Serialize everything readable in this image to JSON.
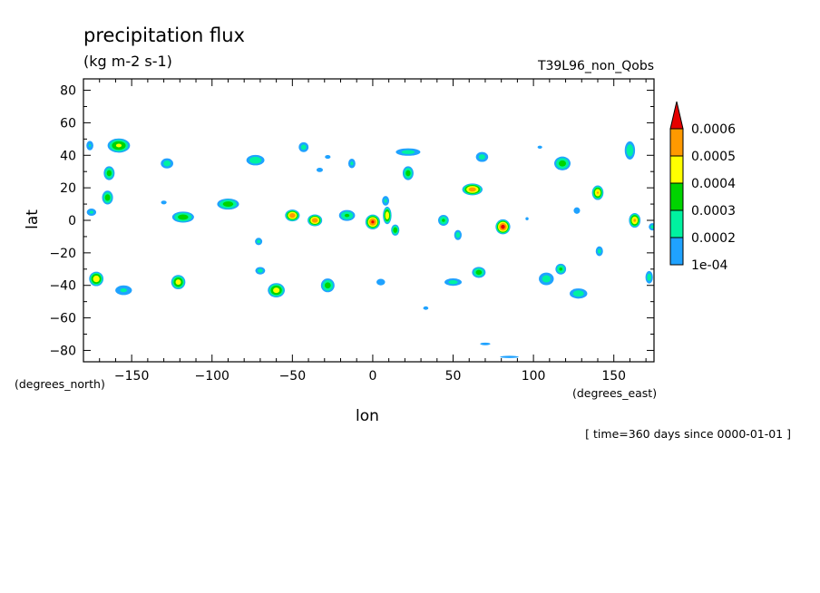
{
  "chart_data": {
    "type": "contour",
    "title": "precipitation flux",
    "units": "(kg m-2 s-1)",
    "dataset_label": "T39L96_non_Qobs",
    "xlabel": "lon",
    "ylabel": "lat",
    "x_unit_label": "(degrees_east)",
    "y_unit_label": "(degrees_north)",
    "time_label": "[ time=360 days since 0000-01-01 ]",
    "xlim": [
      -180,
      175
    ],
    "ylim": [
      -87,
      87
    ],
    "x_ticks": [
      -150,
      -100,
      -50,
      0,
      50,
      100,
      150
    ],
    "x_tick_labels": [
      "−150",
      "−100",
      "−50",
      "0",
      "50",
      "100",
      "150"
    ],
    "y_ticks": [
      80,
      60,
      40,
      20,
      0,
      -20,
      -40,
      -60,
      -80
    ],
    "y_tick_labels": [
      "80",
      "60",
      "40",
      "20",
      "0",
      "−20",
      "−40",
      "−60",
      "−80"
    ],
    "colorbar": {
      "levels": [
        0.0001,
        0.0002,
        0.0003,
        0.0004,
        0.0005,
        0.0006
      ],
      "labels": [
        "1e-04",
        "0.0002",
        "0.0003",
        "0.0004",
        "0.0005",
        "0.0006"
      ],
      "colors": [
        "#1fa2ff",
        "#00f2a0",
        "#00d400",
        "#ffff00",
        "#ff9900",
        "#e60000"
      ]
    },
    "features": [
      {
        "lon": -158,
        "lat": 46,
        "peak": 0.00042,
        "rx": 8,
        "ry": 5
      },
      {
        "lon": -176,
        "lat": 46,
        "peak": 0.00021,
        "rx": 3,
        "ry": 4
      },
      {
        "lon": -164,
        "lat": 29,
        "peak": 0.00035,
        "rx": 4,
        "ry": 5
      },
      {
        "lon": -165,
        "lat": 14,
        "peak": 0.00036,
        "rx": 4,
        "ry": 5
      },
      {
        "lon": -175,
        "lat": 5,
        "peak": 0.00022,
        "rx": 4,
        "ry": 3
      },
      {
        "lon": -128,
        "lat": 35,
        "peak": 0.00025,
        "rx": 5,
        "ry": 4
      },
      {
        "lon": -130,
        "lat": 11,
        "peak": 0.00015,
        "rx": 3,
        "ry": 2
      },
      {
        "lon": -118,
        "lat": 2,
        "peak": 0.00036,
        "rx": 8,
        "ry": 4
      },
      {
        "lon": -90,
        "lat": 10,
        "peak": 0.00036,
        "rx": 8,
        "ry": 4
      },
      {
        "lon": -73,
        "lat": 37,
        "peak": 0.00028,
        "rx": 7,
        "ry": 4
      },
      {
        "lon": -71,
        "lat": -13,
        "peak": 0.00023,
        "rx": 3,
        "ry": 3
      },
      {
        "lon": -50,
        "lat": 3,
        "peak": 0.00058,
        "rx": 5,
        "ry": 4
      },
      {
        "lon": -36,
        "lat": 0,
        "peak": 0.00058,
        "rx": 5,
        "ry": 4
      },
      {
        "lon": -16,
        "lat": 3,
        "peak": 0.00032,
        "rx": 6,
        "ry": 4
      },
      {
        "lon": -43,
        "lat": 45,
        "peak": 0.00024,
        "rx": 4,
        "ry": 4
      },
      {
        "lon": -33,
        "lat": 31,
        "peak": 0.00018,
        "rx": 3,
        "ry": 2
      },
      {
        "lon": -28,
        "lat": 39,
        "peak": 0.00015,
        "rx": 3,
        "ry": 2
      },
      {
        "lon": -13,
        "lat": 35,
        "peak": 0.00022,
        "rx": 3,
        "ry": 4
      },
      {
        "lon": 0,
        "lat": -1,
        "peak": 0.00062,
        "rx": 5,
        "ry": 5
      },
      {
        "lon": 9,
        "lat": 3,
        "peak": 0.00048,
        "rx": 3,
        "ry": 6
      },
      {
        "lon": 8,
        "lat": 12,
        "peak": 0.00022,
        "rx": 3,
        "ry": 4
      },
      {
        "lon": 14,
        "lat": -6,
        "peak": 0.00037,
        "rx": 3,
        "ry": 4
      },
      {
        "lon": 22,
        "lat": 29,
        "peak": 0.00035,
        "rx": 4,
        "ry": 5
      },
      {
        "lon": 22,
        "lat": 42,
        "peak": 0.00024,
        "rx": 10,
        "ry": 3
      },
      {
        "lon": 44,
        "lat": 0,
        "peak": 0.00032,
        "rx": 4,
        "ry": 4
      },
      {
        "lon": 53,
        "lat": -9,
        "peak": 0.00025,
        "rx": 3,
        "ry": 4
      },
      {
        "lon": 62,
        "lat": 19,
        "peak": 0.00056,
        "rx": 7,
        "ry": 4
      },
      {
        "lon": 68,
        "lat": 39,
        "peak": 0.00024,
        "rx": 5,
        "ry": 4
      },
      {
        "lon": 81,
        "lat": -4,
        "peak": 0.00064,
        "rx": 5,
        "ry": 5
      },
      {
        "lon": 96,
        "lat": 1,
        "peak": 0.00013,
        "rx": 2,
        "ry": 2
      },
      {
        "lon": 118,
        "lat": 35,
        "peak": 0.00035,
        "rx": 6,
        "ry": 5
      },
      {
        "lon": 104,
        "lat": 45,
        "peak": 0.00013,
        "rx": 3,
        "ry": 2
      },
      {
        "lon": 140,
        "lat": 17,
        "peak": 0.0005,
        "rx": 4,
        "ry": 5
      },
      {
        "lon": 127,
        "lat": 6,
        "peak": 0.00018,
        "rx": 3,
        "ry": 3
      },
      {
        "lon": 141,
        "lat": -19,
        "peak": 0.00023,
        "rx": 3,
        "ry": 4
      },
      {
        "lon": 163,
        "lat": 0,
        "peak": 0.00052,
        "rx": 4,
        "ry": 5
      },
      {
        "lon": 160,
        "lat": 43,
        "peak": 0.00028,
        "rx": 4,
        "ry": 7
      },
      {
        "lon": 174,
        "lat": -4,
        "peak": 0.00023,
        "rx": 3,
        "ry": 3
      },
      {
        "lon": -172,
        "lat": -36,
        "peak": 0.00048,
        "rx": 5,
        "ry": 5
      },
      {
        "lon": -155,
        "lat": -43,
        "peak": 0.00022,
        "rx": 7,
        "ry": 4
      },
      {
        "lon": -121,
        "lat": -38,
        "peak": 0.00045,
        "rx": 5,
        "ry": 5
      },
      {
        "lon": -70,
        "lat": -31,
        "peak": 0.00024,
        "rx": 4,
        "ry": 3
      },
      {
        "lon": -60,
        "lat": -43,
        "peak": 0.00045,
        "rx": 6,
        "ry": 5
      },
      {
        "lon": -28,
        "lat": -40,
        "peak": 0.00035,
        "rx": 5,
        "ry": 5
      },
      {
        "lon": 5,
        "lat": -38,
        "peak": 0.00018,
        "rx": 4,
        "ry": 3
      },
      {
        "lon": 50,
        "lat": -38,
        "peak": 0.00024,
        "rx": 7,
        "ry": 3
      },
      {
        "lon": 66,
        "lat": -32,
        "peak": 0.00035,
        "rx": 5,
        "ry": 4
      },
      {
        "lon": 108,
        "lat": -36,
        "peak": 0.00025,
        "rx": 6,
        "ry": 5
      },
      {
        "lon": 117,
        "lat": -30,
        "peak": 0.00032,
        "rx": 4,
        "ry": 4
      },
      {
        "lon": 128,
        "lat": -45,
        "peak": 0.00026,
        "rx": 7,
        "ry": 4
      },
      {
        "lon": 172,
        "lat": -35,
        "peak": 0.00025,
        "rx": 3,
        "ry": 5
      },
      {
        "lon": 33,
        "lat": -54,
        "peak": 0.00014,
        "rx": 3,
        "ry": 2
      },
      {
        "lon": 70,
        "lat": -76,
        "peak": 0.00014,
        "rx": 6,
        "ry": 1.5
      },
      {
        "lon": 85,
        "lat": -84,
        "peak": 0.00013,
        "rx": 12,
        "ry": 1.5
      }
    ]
  }
}
